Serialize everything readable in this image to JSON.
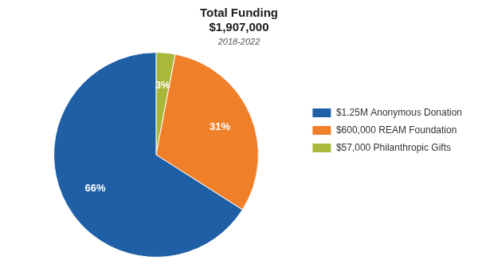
{
  "chart_data": {
    "type": "pie",
    "title": [
      "Total Funding",
      "$1,907,000"
    ],
    "subtitle": "2018-2022",
    "categories": [
      "$57,000 Philanthropic Gifts",
      "$600,000 REAM Foundation",
      "$1.25M Anonymous Donation"
    ],
    "values": [
      3,
      31,
      66
    ],
    "value_labels": [
      "3%",
      "31%",
      "66%"
    ],
    "colors": [
      "#a8b83a",
      "#f07f2a",
      "#1f5fa6"
    ],
    "data_labels": true,
    "legend": "right"
  }
}
